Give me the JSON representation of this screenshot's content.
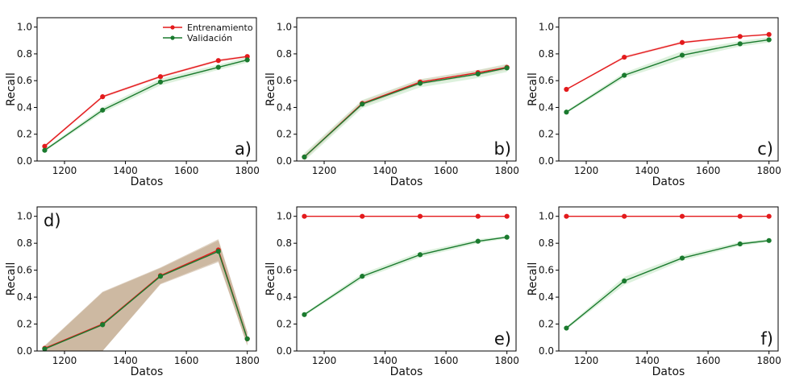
{
  "chart_data": [
    {
      "type": "line",
      "panel_label": "a)",
      "panel_label_position": "bottom-right",
      "xlabel": "Datos",
      "ylabel": "Recall",
      "xlim": [
        1110,
        1830
      ],
      "ylim": [
        0,
        1.07
      ],
      "xticks": [
        1200,
        1400,
        1600,
        1800
      ],
      "yticks": [
        0.0,
        0.2,
        0.4,
        0.6,
        0.8,
        1.0
      ],
      "legend": {
        "placement": "top-right",
        "entries": [
          "Entrenamiento",
          "Validación"
        ]
      },
      "x": [
        1135,
        1325,
        1515,
        1705,
        1800
      ],
      "series": [
        {
          "name": "Entrenamiento",
          "color": "#e31a1c",
          "values": [
            0.11,
            0.48,
            0.63,
            0.75,
            0.78
          ],
          "band": [
            0.01,
            0.01,
            0.01,
            0.01,
            0.01
          ]
        },
        {
          "name": "Validación",
          "color": "#1a7a2e",
          "values": [
            0.08,
            0.38,
            0.59,
            0.7,
            0.755
          ],
          "band": [
            0.01,
            0.02,
            0.025,
            0.02,
            0.02
          ]
        }
      ]
    },
    {
      "type": "line",
      "panel_label": "b)",
      "panel_label_position": "bottom-right",
      "xlabel": "Datos",
      "ylabel": "Recall",
      "xlim": [
        1110,
        1830
      ],
      "ylim": [
        0,
        1.07
      ],
      "xticks": [
        1200,
        1400,
        1600,
        1800
      ],
      "yticks": [
        0.0,
        0.2,
        0.4,
        0.6,
        0.8,
        1.0
      ],
      "x": [
        1135,
        1325,
        1515,
        1705,
        1800
      ],
      "series": [
        {
          "name": "Entrenamiento",
          "color": "#e31a1c",
          "values": [
            0.03,
            0.43,
            0.59,
            0.66,
            0.7
          ],
          "band": [
            0.02,
            0.02,
            0.02,
            0.02,
            0.02
          ]
        },
        {
          "name": "Validación",
          "color": "#1a7a2e",
          "values": [
            0.03,
            0.425,
            0.58,
            0.65,
            0.695
          ],
          "band": [
            0.03,
            0.03,
            0.03,
            0.03,
            0.03
          ]
        }
      ]
    },
    {
      "type": "line",
      "panel_label": "c)",
      "panel_label_position": "bottom-right",
      "xlabel": "Datos",
      "ylabel": "Recall",
      "xlim": [
        1110,
        1830
      ],
      "ylim": [
        0,
        1.07
      ],
      "xticks": [
        1200,
        1400,
        1600,
        1800
      ],
      "yticks": [
        0.0,
        0.2,
        0.4,
        0.6,
        0.8,
        1.0
      ],
      "x": [
        1135,
        1325,
        1515,
        1705,
        1800
      ],
      "series": [
        {
          "name": "Entrenamiento",
          "color": "#e31a1c",
          "values": [
            0.535,
            0.775,
            0.885,
            0.93,
            0.945
          ],
          "band": [
            0.005,
            0.01,
            0.01,
            0.005,
            0.005
          ]
        },
        {
          "name": "Validación",
          "color": "#1a7a2e",
          "values": [
            0.365,
            0.64,
            0.79,
            0.875,
            0.905
          ],
          "band": [
            0.01,
            0.02,
            0.03,
            0.02,
            0.02
          ]
        }
      ]
    },
    {
      "type": "line",
      "panel_label": "d)",
      "panel_label_position": "top-left",
      "xlabel": "Datos",
      "ylabel": "Recall",
      "xlim": [
        1110,
        1830
      ],
      "ylim": [
        0,
        1.07
      ],
      "xticks": [
        1200,
        1400,
        1600,
        1800
      ],
      "yticks": [
        0.0,
        0.2,
        0.4,
        0.6,
        0.8,
        1.0
      ],
      "x": [
        1135,
        1325,
        1515,
        1705,
        1800
      ],
      "series": [
        {
          "name": "Entrenamiento",
          "color": "#e31a1c",
          "values": [
            0.02,
            0.2,
            0.56,
            0.75,
            0.09
          ],
          "band": [
            0.02,
            0.24,
            0.06,
            0.08,
            0.05
          ]
        },
        {
          "name": "Validación",
          "color": "#1a7a2e",
          "values": [
            0.015,
            0.195,
            0.555,
            0.74,
            0.09
          ],
          "band": [
            0.02,
            0.24,
            0.06,
            0.08,
            0.05
          ]
        }
      ]
    },
    {
      "type": "line",
      "panel_label": "e)",
      "panel_label_position": "bottom-right",
      "xlabel": "Datos",
      "ylabel": "Recall",
      "xlim": [
        1110,
        1830
      ],
      "ylim": [
        0,
        1.07
      ],
      "xticks": [
        1200,
        1400,
        1600,
        1800
      ],
      "yticks": [
        0.0,
        0.2,
        0.4,
        0.6,
        0.8,
        1.0
      ],
      "x": [
        1135,
        1325,
        1515,
        1705,
        1800
      ],
      "series": [
        {
          "name": "Entrenamiento",
          "color": "#e31a1c",
          "values": [
            1.0,
            1.0,
            1.0,
            1.0,
            1.0
          ],
          "band": [
            0,
            0,
            0,
            0,
            0
          ]
        },
        {
          "name": "Validación",
          "color": "#1a7a2e",
          "values": [
            0.27,
            0.555,
            0.715,
            0.815,
            0.845
          ],
          "band": [
            0.01,
            0.02,
            0.02,
            0.015,
            0.01
          ]
        }
      ]
    },
    {
      "type": "line",
      "panel_label": "f)",
      "panel_label_position": "bottom-right",
      "xlabel": "Datos",
      "ylabel": "Recall",
      "xlim": [
        1110,
        1830
      ],
      "ylim": [
        0,
        1.07
      ],
      "xticks": [
        1200,
        1400,
        1600,
        1800
      ],
      "yticks": [
        0.0,
        0.2,
        0.4,
        0.6,
        0.8,
        1.0
      ],
      "x": [
        1135,
        1325,
        1515,
        1705,
        1800
      ],
      "series": [
        {
          "name": "Entrenamiento",
          "color": "#e31a1c",
          "values": [
            1.0,
            1.0,
            1.0,
            1.0,
            1.0
          ],
          "band": [
            0,
            0,
            0,
            0,
            0
          ]
        },
        {
          "name": "Validación",
          "color": "#1a7a2e",
          "values": [
            0.17,
            0.52,
            0.69,
            0.795,
            0.82
          ],
          "band": [
            0.01,
            0.03,
            0.02,
            0.015,
            0.01
          ]
        }
      ]
    }
  ]
}
